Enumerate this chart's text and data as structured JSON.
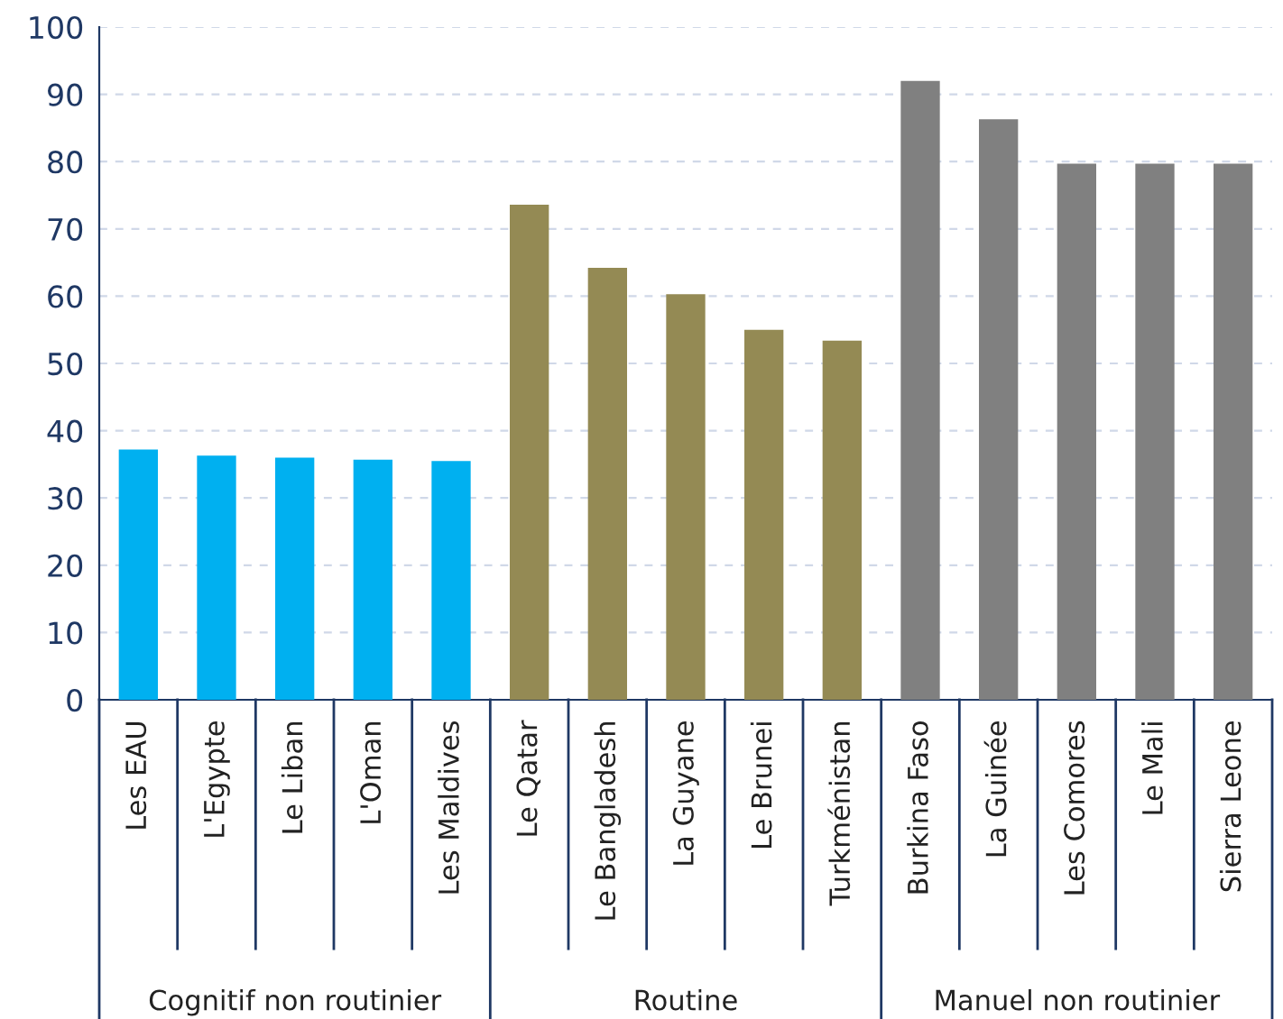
{
  "chart_data": {
    "type": "bar",
    "categories": [
      "Les EAU",
      "L'Egypte",
      "Le Liban",
      "L'Oman",
      "Les Maldives",
      "Le Qatar",
      "Le Bangladesh",
      "La Guyane",
      "Le Brunei",
      "Turkménistan",
      "Burkina Faso",
      "La Guinée",
      "Les Comores",
      "Le Mali",
      "Sierra Leone"
    ],
    "values": [
      37.2,
      36.3,
      36.0,
      35.7,
      35.5,
      73.6,
      64.2,
      60.3,
      55.0,
      53.4,
      92.0,
      86.3,
      79.7,
      79.7,
      79.7
    ],
    "colors": [
      "#00b0f0",
      "#00b0f0",
      "#00b0f0",
      "#00b0f0",
      "#00b0f0",
      "#948a54",
      "#948a54",
      "#948a54",
      "#948a54",
      "#948a54",
      "#808080",
      "#808080",
      "#808080",
      "#808080",
      "#808080"
    ],
    "annotations": [
      "Cognitif non routinier",
      "Routine",
      "Manuel non routinier"
    ],
    "ylim": [
      0,
      100
    ],
    "yticks": [
      0,
      10,
      20,
      30,
      40,
      50,
      60,
      70,
      80,
      90,
      100
    ],
    "grid": "y"
  }
}
